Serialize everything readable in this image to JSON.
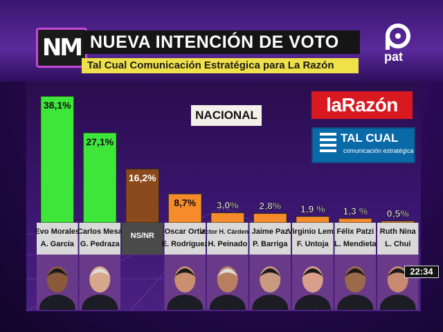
{
  "header": {
    "logo": "NM",
    "title": "NUEVA INTENCIÓN DE VOTO",
    "subtitle": "Tal Cual Comunicación Estratégica para La Razón",
    "channel": "pat"
  },
  "chart_labels": {
    "scope": "NACIONAL",
    "brand_1": "laRazón",
    "brand_2": "TAL CUAL",
    "brand_2_sub": "comunicación estratégica"
  },
  "clock": "22:34",
  "colors": {
    "green": "#3ee63a",
    "brown": "#8a4a1c",
    "orange": "#f58b2a"
  },
  "chart_data": {
    "type": "bar",
    "categories": [
      "Evo Morales A. García",
      "Carlos Mesa G. Pedraza",
      "NS/NR",
      "Oscar Ortiz E. Rodríguez",
      "Víctor H. Cárdenas H. Peinado",
      "Jaime Paz P. Barriga",
      "Virginio Lema F. Untoja",
      "Félix Patzi L. Mendieta",
      "Ruth Nina L. Chui"
    ],
    "values": [
      38.1,
      27.1,
      16.2,
      8.7,
      3.0,
      2.8,
      1.9,
      1.3,
      0.5
    ],
    "value_labels": [
      "38,1%",
      "27,1%",
      "16,2%",
      "8,7%",
      "3,0%",
      "2,8%",
      "1,9 %",
      "1,3 %",
      "0,5%"
    ],
    "bar_colors": [
      "#3ee63a",
      "#3ee63a",
      "#8a4a1c",
      "#f58b2a",
      "#f58b2a",
      "#f58b2a",
      "#f58b2a",
      "#f58b2a",
      "#f58b2a"
    ],
    "name_lines": [
      [
        "Evo Morales",
        "A. García"
      ],
      [
        "Carlos Mesa",
        "G. Pedraza"
      ],
      [
        "NS/NR",
        ""
      ],
      [
        "Oscar Ortiz",
        "E. Rodríguez"
      ],
      [
        "Víctor H. Cárdenas",
        "H. Peinado"
      ],
      [
        "Jaime Paz",
        "P. Barriga"
      ],
      [
        "Virginio Lema",
        "F. Untoja"
      ],
      [
        "Félix Patzi",
        "L. Mendieta"
      ],
      [
        "Ruth Nina",
        "L. Chui"
      ]
    ],
    "ylim": [
      0,
      40
    ],
    "title": "",
    "xlabel": "",
    "ylabel": ""
  }
}
